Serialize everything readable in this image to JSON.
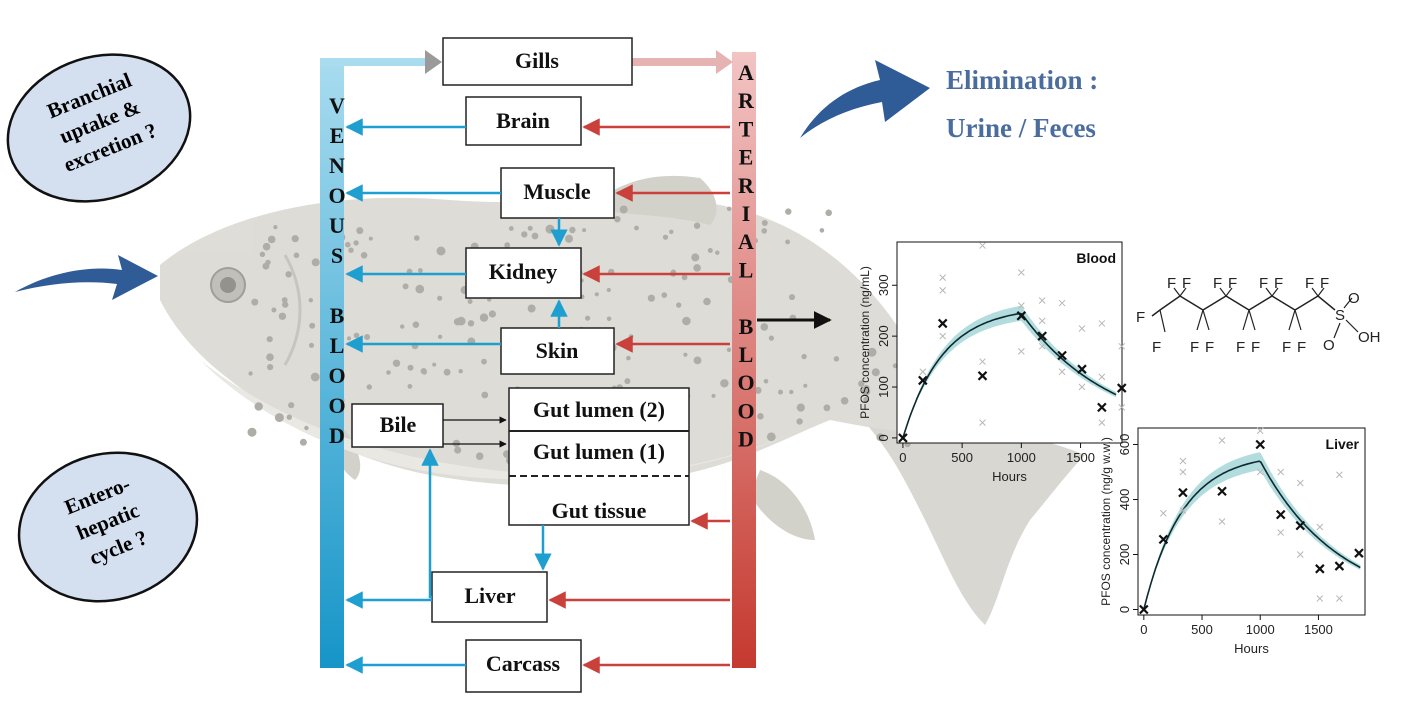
{
  "ovals": {
    "branchial": [
      "Branchial",
      "uptake &",
      "excretion ?"
    ],
    "enterohepatic": [
      "Entero-",
      "hepatic",
      "cycle ?"
    ]
  },
  "venous": [
    "V",
    "E",
    "N",
    "O",
    "U",
    "S",
    "",
    "B",
    "L",
    "O",
    "O",
    "D"
  ],
  "arterial": [
    "A",
    "R",
    "T",
    "E",
    "R",
    "I",
    "A",
    "L",
    "",
    "B",
    "L",
    "O",
    "O",
    "D"
  ],
  "compartments": {
    "gills": "Gills",
    "brain": "Brain",
    "muscle": "Muscle",
    "kidney": "Kidney",
    "skin": "Skin",
    "bile": "Bile",
    "gut_lumen_2": "Gut lumen (2)",
    "gut_lumen_1": "Gut lumen (1)",
    "gut_tissue": "Gut tissue",
    "liver": "Liver",
    "carcass": "Carcass"
  },
  "elimination": {
    "line1": "Elimination :",
    "line2": "Urine / Feces"
  },
  "colors": {
    "venous": "#1f9fd0",
    "arterial": "#c9413a",
    "elimination": "#4a6d9e",
    "oval_fill": "#d4e0f0",
    "big_arrow": "#2f5b96"
  },
  "molecule": {
    "fluorines": "F",
    "sulfur": "S",
    "oxygen": "O",
    "hydroxyl": "OH"
  },
  "chart_data": [
    {
      "type": "scatter",
      "title": "Blood",
      "xlabel": "Hours",
      "ylabel": "PFOS concentration  (ng/mL)",
      "xlim": [
        -50,
        1850
      ],
      "ylim": [
        -10,
        385
      ],
      "xticks": [
        0,
        500,
        1000,
        1500
      ],
      "yticks": [
        0,
        100,
        200,
        300
      ],
      "observed_means": [
        {
          "x": 0,
          "y": 0
        },
        {
          "x": 168,
          "y": 113
        },
        {
          "x": 336,
          "y": 225
        },
        {
          "x": 672,
          "y": 122
        },
        {
          "x": 1000,
          "y": 240
        },
        {
          "x": 1176,
          "y": 200
        },
        {
          "x": 1344,
          "y": 162
        },
        {
          "x": 1512,
          "y": 135
        },
        {
          "x": 1680,
          "y": 60
        },
        {
          "x": 1848,
          "y": 98
        }
      ],
      "individual_points": [
        {
          "x": 168,
          "y": 130
        },
        {
          "x": 336,
          "y": 315
        },
        {
          "x": 336,
          "y": 290
        },
        {
          "x": 336,
          "y": 200
        },
        {
          "x": 672,
          "y": 378
        },
        {
          "x": 672,
          "y": 30
        },
        {
          "x": 672,
          "y": 150
        },
        {
          "x": 1000,
          "y": 325
        },
        {
          "x": 1000,
          "y": 170
        },
        {
          "x": 1000,
          "y": 260
        },
        {
          "x": 1176,
          "y": 270
        },
        {
          "x": 1176,
          "y": 230
        },
        {
          "x": 1176,
          "y": 180
        },
        {
          "x": 1344,
          "y": 265
        },
        {
          "x": 1344,
          "y": 130
        },
        {
          "x": 1512,
          "y": 215
        },
        {
          "x": 1512,
          "y": 100
        },
        {
          "x": 1680,
          "y": 225
        },
        {
          "x": 1680,
          "y": 30
        },
        {
          "x": 1680,
          "y": 120
        },
        {
          "x": 1848,
          "y": 180
        },
        {
          "x": 1848,
          "y": 60
        }
      ],
      "model_curve": {
        "uptake_until": 1000,
        "peak": 245,
        "end_value": 85
      }
    },
    {
      "type": "scatter",
      "title": "Liver",
      "xlabel": "Hours",
      "ylabel": "PFOS concentration (ng/g w.w.)",
      "xlim": [
        -50,
        1900
      ],
      "ylim": [
        -20,
        660
      ],
      "xticks": [
        0,
        500,
        1000,
        1500
      ],
      "yticks": [
        0,
        200,
        400,
        600
      ],
      "observed_means": [
        {
          "x": 0,
          "y": 0
        },
        {
          "x": 168,
          "y": 255
        },
        {
          "x": 336,
          "y": 425
        },
        {
          "x": 672,
          "y": 430
        },
        {
          "x": 1000,
          "y": 600
        },
        {
          "x": 1176,
          "y": 345
        },
        {
          "x": 1344,
          "y": 305
        },
        {
          "x": 1512,
          "y": 148
        },
        {
          "x": 1680,
          "y": 158
        },
        {
          "x": 1848,
          "y": 205
        }
      ],
      "individual_points": [
        {
          "x": 168,
          "y": 350
        },
        {
          "x": 336,
          "y": 540
        },
        {
          "x": 336,
          "y": 500
        },
        {
          "x": 336,
          "y": 360
        },
        {
          "x": 672,
          "y": 615
        },
        {
          "x": 672,
          "y": 320
        },
        {
          "x": 1000,
          "y": 650
        },
        {
          "x": 1000,
          "y": 500
        },
        {
          "x": 1176,
          "y": 500
        },
        {
          "x": 1176,
          "y": 280
        },
        {
          "x": 1344,
          "y": 460
        },
        {
          "x": 1344,
          "y": 200
        },
        {
          "x": 1512,
          "y": 300
        },
        {
          "x": 1512,
          "y": 40
        },
        {
          "x": 1680,
          "y": 490
        },
        {
          "x": 1680,
          "y": 40
        },
        {
          "x": 1848,
          "y": 200
        }
      ],
      "model_curve": {
        "uptake_until": 1000,
        "peak": 540,
        "end_value": 155
      }
    }
  ]
}
